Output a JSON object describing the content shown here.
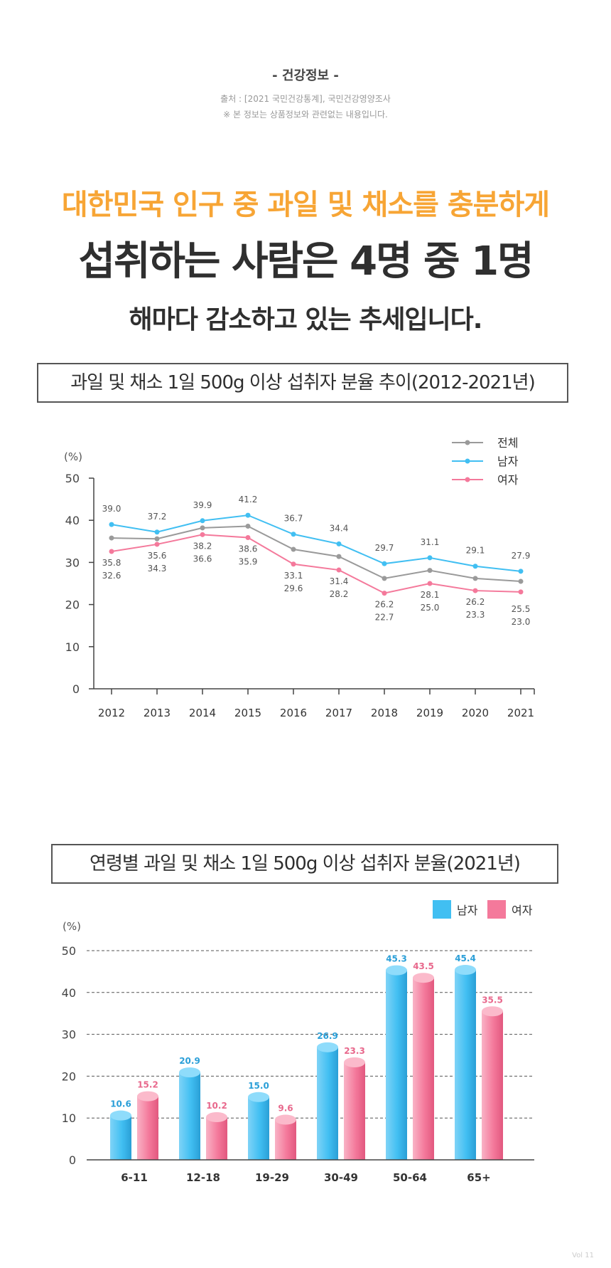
{
  "header": {
    "section_label": "- 건강정보 -",
    "source": "출처 : [2021 국민건강통계], 국민건강영양조사",
    "notice": "※ 본 정보는 상품정보와 관련없는 내용입니다."
  },
  "headline": {
    "line1": "대한민국 인구 중 과일 및 채소를 충분하게",
    "line2": "섭취하는 사람은 4명 중 1명",
    "line3": "해마다 감소하고 있는 추세입니다."
  },
  "footer": {
    "vol": "Vol 11"
  },
  "colors": {
    "accent": "#f7a535",
    "total": "#9a9a9a",
    "male": "#41bff2",
    "female": "#f4799b"
  },
  "chart_data": [
    {
      "type": "line",
      "title": "과일 및 채소 1일 500g 이상 섭취자 분율 추이(2012-2021년)",
      "ylabel": "(%)",
      "xlabel": "",
      "ylim": [
        0,
        50
      ],
      "yticks": [
        0,
        10,
        20,
        30,
        40,
        50
      ],
      "x": [
        "2012",
        "2013",
        "2014",
        "2015",
        "2016",
        "2017",
        "2018",
        "2019",
        "2020",
        "2021"
      ],
      "legend_position": "top-right",
      "series": [
        {
          "name": "전체",
          "color": "#9a9a9a",
          "values": [
            35.8,
            35.6,
            38.2,
            38.6,
            33.1,
            31.4,
            26.2,
            28.1,
            26.2,
            25.5
          ],
          "labels": [
            "35.8",
            "35.6",
            "38.2",
            "38.6",
            "33.1",
            "31.4",
            "26.2",
            "28.1",
            "26.2",
            "25.5"
          ]
        },
        {
          "name": "남자",
          "color": "#41bff2",
          "values": [
            39.0,
            37.2,
            39.9,
            41.2,
            36.7,
            34.4,
            29.7,
            31.1,
            29.1,
            27.9
          ],
          "labels": [
            "39.0",
            "37.2",
            "39.9",
            "41.2",
            "36.7",
            "34.4",
            "29.7",
            "31.1",
            "29.1",
            "27.9"
          ]
        },
        {
          "name": "여자",
          "color": "#f4799b",
          "values": [
            32.6,
            34.3,
            36.6,
            35.9,
            29.6,
            28.2,
            22.7,
            25.0,
            23.3,
            23.0
          ],
          "labels": [
            "32.6",
            "34.3",
            "36.6",
            "35.9",
            "29.6",
            "28.2",
            "22.7",
            "25.0",
            "23.3",
            "23.0"
          ]
        }
      ]
    },
    {
      "type": "bar",
      "title": "연령별 과일 및 채소 1일 500g 이상 섭취자 분율(2021년)",
      "ylabel": "(%)",
      "xlabel": "",
      "ylim": [
        0,
        50
      ],
      "yticks": [
        0,
        10,
        20,
        30,
        40,
        50
      ],
      "grid": true,
      "legend_position": "top-right",
      "categories": [
        "6-11",
        "12-18",
        "19-29",
        "30-49",
        "50-64",
        "65+"
      ],
      "series": [
        {
          "name": "남자",
          "color": "#41bff2",
          "values": [
            10.6,
            20.9,
            15.0,
            26.9,
            45.3,
            45.4
          ],
          "labels": [
            "10.6",
            "20.9",
            "15.0",
            "26.9",
            "45.3",
            "45.4"
          ]
        },
        {
          "name": "여자",
          "color": "#f4799b",
          "values": [
            15.2,
            10.2,
            9.6,
            23.3,
            43.5,
            35.5
          ],
          "labels": [
            "15.2",
            "10.2",
            "9.6",
            "23.3",
            "43.5",
            "35.5"
          ]
        }
      ]
    }
  ]
}
